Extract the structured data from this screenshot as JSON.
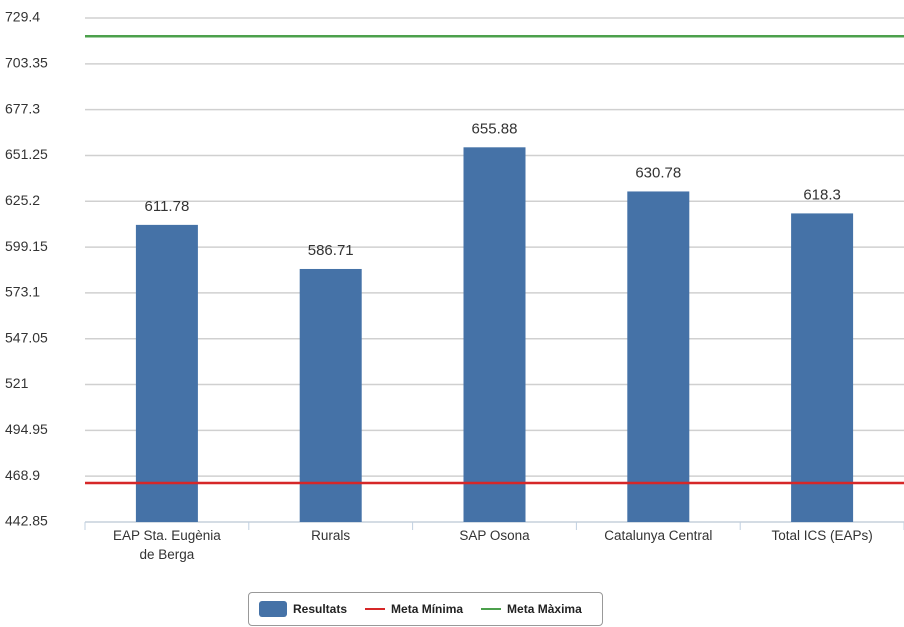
{
  "chart_data": {
    "type": "bar",
    "categories": [
      "EAP Sta. Eugènia de Berga",
      "Rurals",
      "SAP Osona",
      "Catalunya Central",
      "Total ICS (EAPs)"
    ],
    "series": [
      {
        "name": "Resultats",
        "color": "#4572a7",
        "values": [
          611.78,
          586.71,
          655.88,
          630.78,
          618.3
        ]
      }
    ],
    "reference_lines": [
      {
        "name": "Meta Mínima",
        "color": "#d62728",
        "value": 465
      },
      {
        "name": "Meta Màxima",
        "color": "#4ca04c",
        "value": 719
      }
    ],
    "ylim": [
      442.85,
      729.4
    ],
    "yticks": [
      442.85,
      468.9,
      494.95,
      521,
      547.05,
      573.1,
      599.15,
      625.2,
      651.25,
      677.3,
      703.35,
      729.4
    ],
    "grid": true
  }
}
